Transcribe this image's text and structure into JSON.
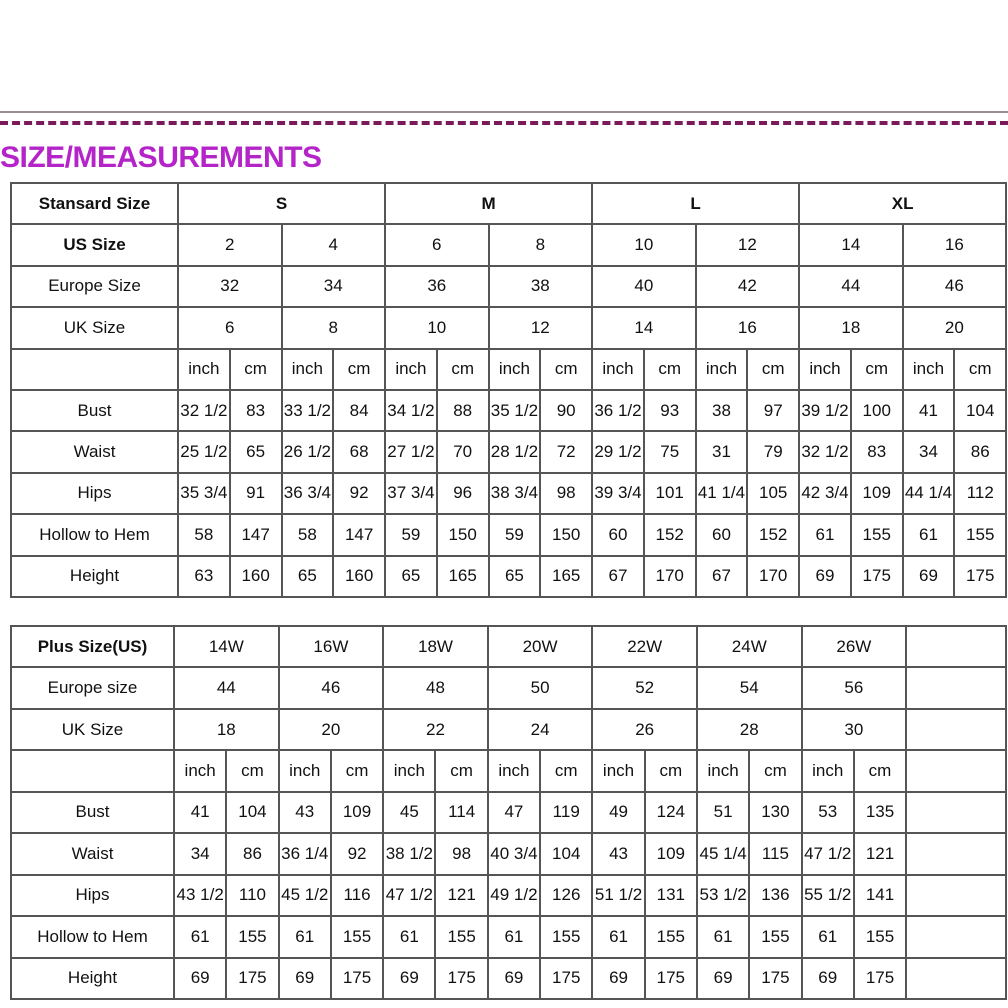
{
  "title": "SIZE/MEASUREMENTS",
  "standard_table": {
    "header_label": "Stansard Size",
    "size_groups": [
      "S",
      "M",
      "L",
      "XL"
    ],
    "size_rows": [
      {
        "label": "US Size",
        "values": [
          "2",
          "4",
          "6",
          "8",
          "10",
          "12",
          "14",
          "16"
        ]
      },
      {
        "label": "Europe Size",
        "values": [
          "32",
          "34",
          "36",
          "38",
          "40",
          "42",
          "44",
          "46"
        ]
      },
      {
        "label": "UK Size",
        "values": [
          "6",
          "8",
          "10",
          "12",
          "14",
          "16",
          "18",
          "20"
        ]
      }
    ],
    "units": [
      "inch",
      "cm"
    ],
    "measure_rows": [
      {
        "label": "Bust",
        "values": [
          "32 1/2",
          "83",
          "33 1/2",
          "84",
          "34 1/2",
          "88",
          "35 1/2",
          "90",
          "36 1/2",
          "93",
          "38",
          "97",
          "39 1/2",
          "100",
          "41",
          "104"
        ]
      },
      {
        "label": "Waist",
        "values": [
          "25 1/2",
          "65",
          "26 1/2",
          "68",
          "27 1/2",
          "70",
          "28 1/2",
          "72",
          "29 1/2",
          "75",
          "31",
          "79",
          "32 1/2",
          "83",
          "34",
          "86"
        ]
      },
      {
        "label": "Hips",
        "values": [
          "35 3/4",
          "91",
          "36 3/4",
          "92",
          "37 3/4",
          "96",
          "38 3/4",
          "98",
          "39 3/4",
          "101",
          "41 1/4",
          "105",
          "42 3/4",
          "109",
          "44 1/4",
          "112"
        ]
      },
      {
        "label": "Hollow to Hem",
        "values": [
          "58",
          "147",
          "58",
          "147",
          "59",
          "150",
          "59",
          "150",
          "60",
          "152",
          "60",
          "152",
          "61",
          "155",
          "61",
          "155"
        ]
      },
      {
        "label": "Height",
        "values": [
          "63",
          "160",
          "65",
          "160",
          "65",
          "165",
          "65",
          "165",
          "67",
          "170",
          "67",
          "170",
          "69",
          "175",
          "69",
          "175"
        ]
      }
    ]
  },
  "plus_table": {
    "header_label": "Plus Size(US)",
    "sizes": [
      "14W",
      "16W",
      "18W",
      "20W",
      "22W",
      "24W",
      "26W"
    ],
    "size_rows": [
      {
        "label": "Europe size",
        "values": [
          "44",
          "46",
          "48",
          "50",
          "52",
          "54",
          "56"
        ]
      },
      {
        "label": "UK Size",
        "values": [
          "18",
          "20",
          "22",
          "24",
          "26",
          "28",
          "30"
        ]
      }
    ],
    "units": [
      "inch",
      "cm"
    ],
    "measure_rows": [
      {
        "label": "Bust",
        "values": [
          "41",
          "104",
          "43",
          "109",
          "45",
          "114",
          "47",
          "119",
          "49",
          "124",
          "51",
          "130",
          "53",
          "135"
        ]
      },
      {
        "label": "Waist",
        "values": [
          "34",
          "86",
          "36 1/4",
          "92",
          "38 1/2",
          "98",
          "40 3/4",
          "104",
          "43",
          "109",
          "45 1/4",
          "115",
          "47 1/2",
          "121"
        ]
      },
      {
        "label": "Hips",
        "values": [
          "43 1/2",
          "110",
          "45 1/2",
          "116",
          "47 1/2",
          "121",
          "49 1/2",
          "126",
          "51 1/2",
          "131",
          "53 1/2",
          "136",
          "55 1/2",
          "141"
        ]
      },
      {
        "label": "Hollow to Hem",
        "values": [
          "61",
          "155",
          "61",
          "155",
          "61",
          "155",
          "61",
          "155",
          "61",
          "155",
          "61",
          "155",
          "61",
          "155"
        ]
      },
      {
        "label": "Height",
        "values": [
          "69",
          "175",
          "69",
          "175",
          "69",
          "175",
          "69",
          "175",
          "69",
          "175",
          "69",
          "175",
          "69",
          "175"
        ]
      }
    ]
  }
}
